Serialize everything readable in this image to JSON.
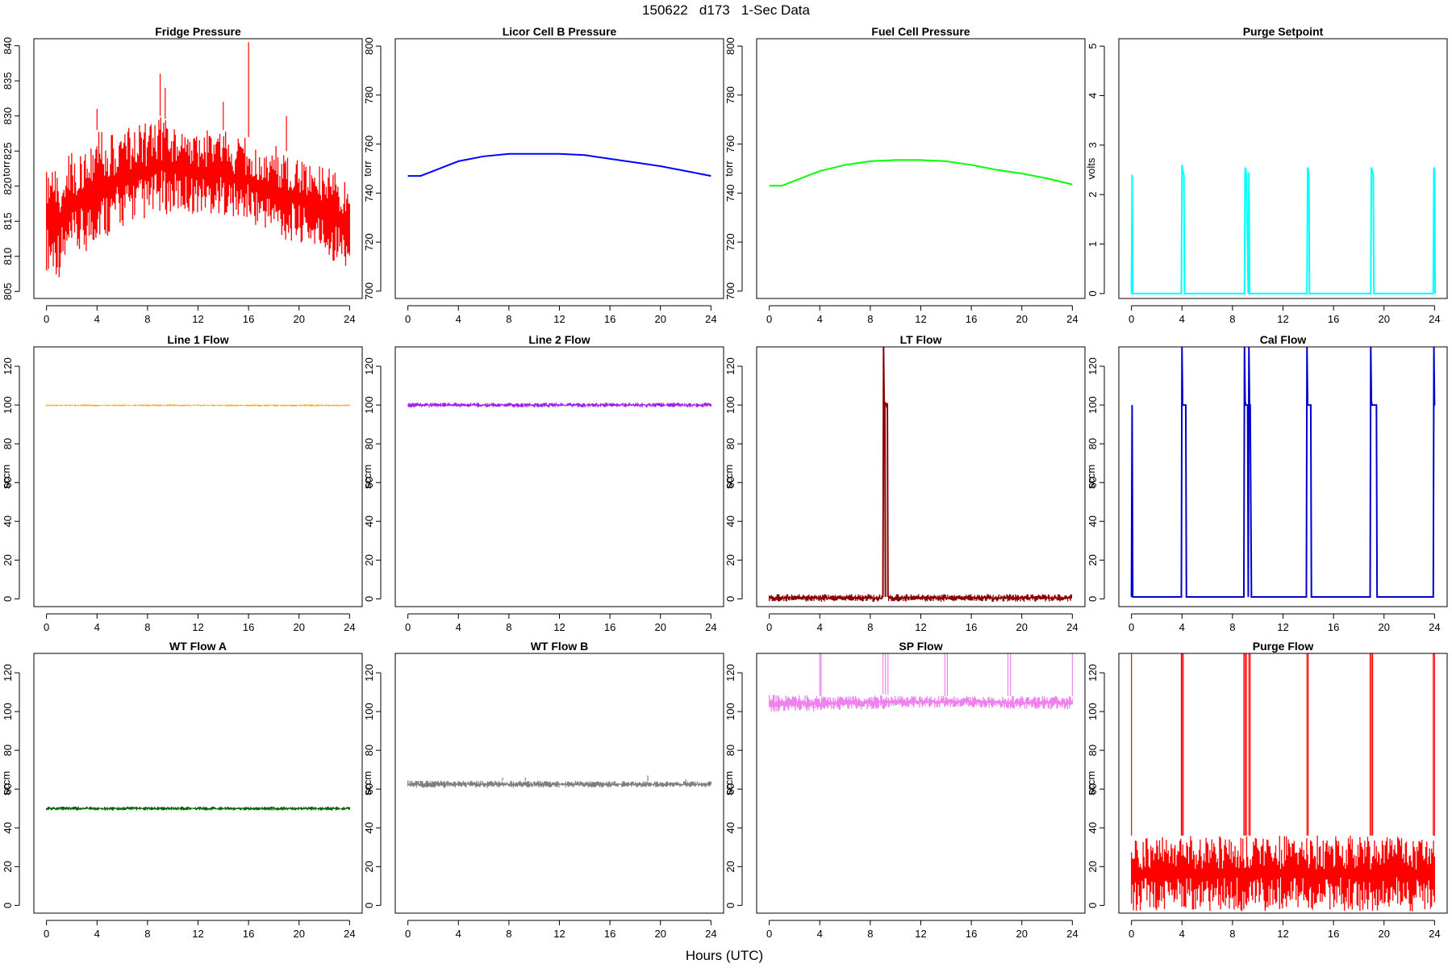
{
  "figure": {
    "title": "150622   d173   1-Sec Data",
    "xlabel": "Hours (UTC)"
  },
  "chart_data": [
    {
      "type": "line",
      "title": "Fridge Pressure",
      "ylabel": "torr",
      "color": "#ff0000",
      "ylim": [
        804,
        841
      ],
      "yticks": [
        805,
        810,
        815,
        820,
        825,
        830,
        835,
        840
      ],
      "xlim": [
        -1,
        25
      ],
      "xticks": [
        0,
        4,
        8,
        12,
        16,
        20,
        24
      ],
      "series": [
        {
          "style": "noise",
          "x": [
            0,
            1,
            2,
            3,
            4,
            5,
            6,
            7,
            8,
            9,
            10,
            11,
            12,
            13,
            14,
            15,
            16,
            17,
            18,
            19,
            20,
            21,
            22,
            23,
            24
          ],
          "low": [
            808,
            807,
            809,
            810,
            812,
            813,
            814,
            815,
            815,
            816,
            816,
            816,
            816,
            816,
            816,
            815,
            815,
            814,
            813,
            812,
            812,
            811,
            810,
            809,
            808
          ],
          "high": [
            822,
            823,
            825,
            826,
            828,
            828,
            828,
            829,
            829,
            830,
            829,
            829,
            828,
            828,
            828,
            827,
            827,
            826,
            826,
            825,
            824,
            823,
            823,
            822,
            821
          ]
        }
      ],
      "spikes": [
        {
          "x": 4.0,
          "y": 831
        },
        {
          "x": 9.0,
          "y": 836
        },
        {
          "x": 9.4,
          "y": 834
        },
        {
          "x": 14.0,
          "y": 832
        },
        {
          "x": 16.0,
          "y": 840.5
        },
        {
          "x": 19.0,
          "y": 830
        }
      ]
    },
    {
      "type": "line",
      "title": "Licor Cell B Pressure",
      "ylabel": "torr",
      "color": "#0000ff",
      "ylim": [
        697,
        803
      ],
      "yticks": [
        700,
        720,
        740,
        760,
        780,
        800
      ],
      "xlim": [
        -1,
        25
      ],
      "xticks": [
        0,
        4,
        8,
        12,
        16,
        20,
        24
      ],
      "series": [
        {
          "style": "line",
          "x": [
            0,
            1,
            2,
            3,
            4,
            6,
            8,
            10,
            12,
            14,
            16,
            18,
            20,
            22,
            24
          ],
          "y": [
            747,
            747,
            749,
            751,
            753,
            755,
            756,
            756,
            756,
            755.5,
            754,
            752.5,
            751,
            749,
            747
          ]
        }
      ]
    },
    {
      "type": "line",
      "title": "Fuel Cell Pressure",
      "ylabel": "torr",
      "color": "#00ff00",
      "ylim": [
        697,
        803
      ],
      "yticks": [
        700,
        720,
        740,
        760,
        780,
        800
      ],
      "xlim": [
        -1,
        25
      ],
      "xticks": [
        0,
        4,
        8,
        12,
        16,
        20,
        24
      ],
      "series": [
        {
          "style": "line",
          "x": [
            0,
            1,
            2,
            3,
            4,
            6,
            8,
            10,
            12,
            14,
            16,
            18,
            20,
            22,
            24
          ],
          "y": [
            743,
            743,
            745,
            747,
            749,
            751.5,
            753,
            753.5,
            753.5,
            753,
            751.5,
            749.5,
            748,
            746,
            743.5
          ]
        }
      ]
    },
    {
      "type": "line",
      "title": "Purge Setpoint",
      "ylabel": "volts",
      "color": "#00ffff",
      "ylim": [
        -0.1,
        5.15
      ],
      "yticks": [
        0,
        1,
        2,
        3,
        4,
        5
      ],
      "xlim": [
        -1,
        25
      ],
      "xticks": [
        0,
        4,
        8,
        12,
        16,
        20,
        24
      ],
      "series": [
        {
          "style": "line",
          "x": [
            0,
            0.05,
            0.1,
            3.95,
            4.0,
            4.05,
            4.1,
            4.15,
            4.2,
            8.95,
            9.0,
            9.05,
            9.1,
            9.25,
            9.3,
            9.35,
            13.9,
            13.95,
            14.0,
            14.05,
            14.1,
            18.95,
            19.0,
            19.05,
            19.1,
            19.15,
            19.2,
            23.9,
            23.95,
            24.0,
            24.05
          ],
          "y": [
            0,
            2.4,
            0,
            0,
            2.6,
            2.5,
            2.45,
            2.4,
            0,
            0,
            2.55,
            2.5,
            2.4,
            0,
            2.45,
            0,
            0,
            2.55,
            2.5,
            2.4,
            0,
            0,
            2.55,
            2.5,
            2.45,
            2.4,
            0,
            0,
            2.55,
            2.5,
            0
          ]
        }
      ]
    },
    {
      "type": "line",
      "title": "Line 1 Flow",
      "ylabel": "sccm",
      "color": "#ffa500",
      "ylim": [
        -4,
        130
      ],
      "yticks": [
        0,
        20,
        40,
        60,
        80,
        100,
        120
      ],
      "xlim": [
        -1,
        25
      ],
      "xticks": [
        0,
        4,
        8,
        12,
        16,
        20,
        24
      ],
      "series": [
        {
          "style": "noise",
          "x": [
            0,
            24
          ],
          "low": [
            99.3,
            99.3
          ],
          "high": [
            100.3,
            100.3
          ]
        }
      ]
    },
    {
      "type": "line",
      "title": "Line 2 Flow",
      "ylabel": "sccm",
      "color": "#a020f0",
      "ylim": [
        -4,
        130
      ],
      "yticks": [
        0,
        20,
        40,
        60,
        80,
        100,
        120
      ],
      "xlim": [
        -1,
        25
      ],
      "xticks": [
        0,
        4,
        8,
        12,
        16,
        20,
        24
      ],
      "series": [
        {
          "style": "noise",
          "x": [
            0,
            24
          ],
          "low": [
            98.8,
            98.8
          ],
          "high": [
            101.2,
            101.2
          ]
        }
      ]
    },
    {
      "type": "line",
      "title": "LT Flow",
      "ylabel": "sccm",
      "color": "#8b0000",
      "ylim": [
        -4,
        130
      ],
      "yticks": [
        0,
        20,
        40,
        60,
        80,
        100,
        120
      ],
      "xlim": [
        -1,
        25
      ],
      "xticks": [
        0,
        4,
        8,
        12,
        16,
        20,
        24
      ],
      "series": [
        {
          "style": "noise",
          "x": [
            0,
            9.0
          ],
          "low": [
            -1.5,
            -1.5
          ],
          "high": [
            2.5,
            2.5
          ]
        },
        {
          "style": "line",
          "x": [
            9.0,
            9.05,
            9.1,
            9.15,
            9.2
          ],
          "y": [
            1,
            130,
            101,
            101,
            1
          ]
        },
        {
          "style": "noise",
          "x": [
            9.05,
            9.35
          ],
          "low": [
            98.5,
            98.5
          ],
          "high": [
            102,
            102
          ]
        },
        {
          "style": "line",
          "x": [
            9.35,
            9.4
          ],
          "y": [
            101,
            1
          ]
        },
        {
          "style": "noise",
          "x": [
            9.45,
            24
          ],
          "low": [
            -1.5,
            -1.5
          ],
          "high": [
            2.5,
            2.5
          ]
        }
      ]
    },
    {
      "type": "line",
      "title": "Cal Flow",
      "ylabel": "sccm",
      "color": "#0000cd",
      "ylim": [
        -4,
        130
      ],
      "yticks": [
        0,
        20,
        40,
        60,
        80,
        100,
        120
      ],
      "xlim": [
        -1,
        25
      ],
      "xticks": [
        0,
        4,
        8,
        12,
        16,
        20,
        24
      ],
      "series": [
        {
          "style": "line",
          "x": [
            0,
            0.05,
            0.1,
            3.95,
            4.0,
            4.05,
            4.3,
            4.35,
            8.9,
            8.95,
            9.0,
            9.05,
            9.2,
            9.25,
            9.3,
            9.35,
            9.4,
            9.5,
            9.55,
            13.85,
            13.9,
            13.95,
            14.2,
            14.25,
            18.9,
            18.95,
            19.0,
            19.05,
            19.4,
            19.45,
            23.9,
            23.95,
            24.0,
            24.05
          ],
          "y": [
            1,
            100,
            1,
            1,
            130,
            100,
            100,
            1,
            1,
            130,
            102,
            100,
            100,
            1,
            130,
            100,
            100,
            1,
            1,
            1,
            130,
            100,
            100,
            1,
            1,
            130,
            102,
            100,
            100,
            1,
            1,
            130,
            100,
            100
          ]
        }
      ]
    },
    {
      "type": "line",
      "title": "WT Flow A",
      "ylabel": "sccm",
      "color": "#006400",
      "ylim": [
        -4,
        130
      ],
      "yticks": [
        0,
        20,
        40,
        60,
        80,
        100,
        120
      ],
      "xlim": [
        -1,
        25
      ],
      "xticks": [
        0,
        4,
        8,
        12,
        16,
        20,
        24
      ],
      "series": [
        {
          "style": "noise",
          "x": [
            0,
            24
          ],
          "low": [
            49,
            49
          ],
          "high": [
            51,
            51
          ]
        }
      ]
    },
    {
      "type": "line",
      "title": "WT Flow B",
      "ylabel": "sccm",
      "color": "#808080",
      "ylim": [
        -4,
        130
      ],
      "yticks": [
        0,
        20,
        40,
        60,
        80,
        100,
        120
      ],
      "xlim": [
        -1,
        25
      ],
      "xticks": [
        0,
        4,
        8,
        12,
        16,
        20,
        24
      ],
      "series": [
        {
          "style": "noise",
          "x": [
            0,
            24
          ],
          "low": [
            60.5,
            61
          ],
          "high": [
            64.5,
            64
          ]
        }
      ],
      "spikes": [
        {
          "x": 7.5,
          "y": 66
        },
        {
          "x": 9.3,
          "y": 66
        },
        {
          "x": 19.0,
          "y": 67
        },
        {
          "x": 22.0,
          "y": 65
        }
      ]
    },
    {
      "type": "line",
      "title": "SP Flow",
      "ylabel": "sccm",
      "color": "#ee82ee",
      "ylim": [
        -4,
        130
      ],
      "yticks": [
        0,
        20,
        40,
        60,
        80,
        100,
        120
      ],
      "xlim": [
        -1,
        25
      ],
      "xticks": [
        0,
        4,
        8,
        12,
        16,
        20,
        24
      ],
      "series": [
        {
          "style": "noise",
          "x": [
            0,
            2,
            4,
            6,
            8,
            9,
            10,
            12,
            14,
            16,
            18,
            19,
            20,
            22,
            24
          ],
          "low": [
            99,
            100,
            100,
            101,
            101,
            101,
            102,
            102,
            102,
            102,
            102,
            101,
            101,
            101,
            101
          ],
          "high": [
            109,
            109,
            108,
            108,
            108,
            109,
            108,
            108,
            108,
            108,
            108,
            108,
            108,
            108,
            108
          ]
        }
      ],
      "spikes": [
        {
          "x": 4.0,
          "y": 130
        },
        {
          "x": 4.1,
          "y": 130
        },
        {
          "x": 9.0,
          "y": 130
        },
        {
          "x": 9.2,
          "y": 130
        },
        {
          "x": 9.4,
          "y": 130
        },
        {
          "x": 13.9,
          "y": 130
        },
        {
          "x": 14.1,
          "y": 130
        },
        {
          "x": 18.9,
          "y": 130
        },
        {
          "x": 19.1,
          "y": 130
        },
        {
          "x": 24.0,
          "y": 130
        }
      ]
    },
    {
      "type": "line",
      "title": "Purge Flow",
      "ylabel": "sccm",
      "color": "#ff0000",
      "ylim": [
        -4,
        130
      ],
      "yticks": [
        0,
        20,
        40,
        60,
        80,
        100,
        120
      ],
      "xlim": [
        -1,
        25
      ],
      "xticks": [
        0,
        4,
        8,
        12,
        16,
        20,
        24
      ],
      "series": [
        {
          "style": "noise",
          "x": [
            0,
            24
          ],
          "low": [
            -3,
            -3
          ],
          "high": [
            36,
            36
          ]
        }
      ],
      "spikes": [
        {
          "x": 0.0,
          "y": 130
        },
        {
          "x": 3.95,
          "y": 130
        },
        {
          "x": 4.0,
          "y": 130
        },
        {
          "x": 4.1,
          "y": 130
        },
        {
          "x": 8.9,
          "y": 130
        },
        {
          "x": 9.0,
          "y": 130
        },
        {
          "x": 9.1,
          "y": 130
        },
        {
          "x": 9.3,
          "y": 130
        },
        {
          "x": 9.4,
          "y": 130
        },
        {
          "x": 13.9,
          "y": 130
        },
        {
          "x": 14.0,
          "y": 130
        },
        {
          "x": 18.9,
          "y": 130
        },
        {
          "x": 19.0,
          "y": 130
        },
        {
          "x": 19.1,
          "y": 130
        },
        {
          "x": 23.9,
          "y": 130
        },
        {
          "x": 24.0,
          "y": 130
        }
      ]
    }
  ]
}
